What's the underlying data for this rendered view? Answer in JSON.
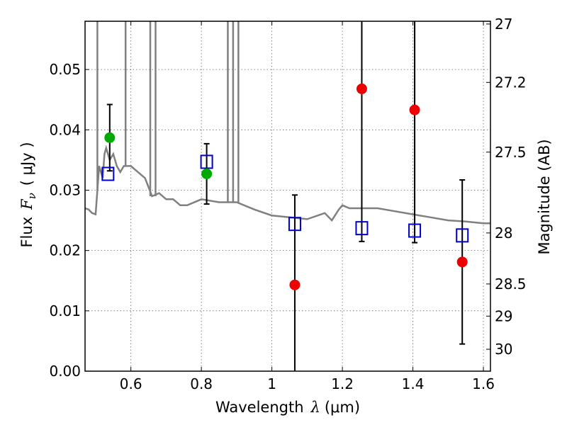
{
  "chart_data": {
    "type": "scatter",
    "xlabel_prefix": "Wavelength",
    "xlabel_symbol": "λ",
    "xlabel_unit": "(μm)",
    "ylabel_prefix": "Flux",
    "ylabel_symbol": "F",
    "ylabel_sub": "ν",
    "ylabel_unit": "( μJy )",
    "y2label": "Magnitude (AB)",
    "xlim": [
      0.47,
      1.62
    ],
    "ylim": [
      0.0,
      0.058
    ],
    "grid": true,
    "x_ticks": [
      0.6,
      0.8,
      1.0,
      1.2,
      1.4,
      1.6
    ],
    "x_tick_labels": [
      "0.6",
      "0.8",
      "1",
      "1.2",
      "1.4",
      "1.6"
    ],
    "y_ticks": [
      0.0,
      0.01,
      0.02,
      0.03,
      0.04,
      0.05
    ],
    "y_tick_labels": [
      "0.00",
      "0.01",
      "0.02",
      "0.03",
      "0.04",
      "0.05"
    ],
    "mag_ticks": [
      "27",
      "27.2",
      "27.5",
      "28",
      "28.5",
      "29",
      "30"
    ],
    "colors": {
      "model": "#808080",
      "model_fit": "#0000cc",
      "detection": "#00aa00",
      "measurement": "#ee0000",
      "errorbar": "#000000"
    },
    "model_spectrum": {
      "name": "SED model",
      "points": [
        [
          0.47,
          0.027
        ],
        [
          0.48,
          0.0268
        ],
        [
          0.49,
          0.0262
        ],
        [
          0.5,
          0.026
        ],
        [
          0.505,
          0.03
        ],
        [
          0.51,
          0.034
        ],
        [
          0.52,
          0.032
        ],
        [
          0.525,
          0.036
        ],
        [
          0.53,
          0.037
        ],
        [
          0.54,
          0.035
        ],
        [
          0.55,
          0.036
        ],
        [
          0.56,
          0.034
        ],
        [
          0.57,
          0.033
        ],
        [
          0.58,
          0.034
        ],
        [
          0.6,
          0.034
        ],
        [
          0.62,
          0.033
        ],
        [
          0.64,
          0.032
        ],
        [
          0.66,
          0.029
        ],
        [
          0.68,
          0.0295
        ],
        [
          0.7,
          0.0285
        ],
        [
          0.72,
          0.0285
        ],
        [
          0.74,
          0.0275
        ],
        [
          0.76,
          0.0275
        ],
        [
          0.8,
          0.0285
        ],
        [
          0.85,
          0.028
        ],
        [
          0.9,
          0.028
        ],
        [
          0.95,
          0.0268
        ],
        [
          1.0,
          0.0258
        ],
        [
          1.05,
          0.0255
        ],
        [
          1.1,
          0.0252
        ],
        [
          1.15,
          0.0262
        ],
        [
          1.17,
          0.025
        ],
        [
          1.19,
          0.0268
        ],
        [
          1.2,
          0.0275
        ],
        [
          1.22,
          0.027
        ],
        [
          1.3,
          0.027
        ],
        [
          1.35,
          0.0265
        ],
        [
          1.4,
          0.026
        ],
        [
          1.45,
          0.0255
        ],
        [
          1.5,
          0.025
        ],
        [
          1.55,
          0.0248
        ],
        [
          1.6,
          0.0245
        ],
        [
          1.62,
          0.0245
        ]
      ],
      "spike_x": [
        0.505,
        0.585,
        0.655,
        0.67,
        0.875,
        0.89,
        0.905
      ]
    },
    "series": [
      {
        "name": "model photometry",
        "marker": "open-square",
        "points": [
          {
            "x": 0.535,
            "y": 0.0327
          },
          {
            "x": 0.815,
            "y": 0.0347
          },
          {
            "x": 1.065,
            "y": 0.0244
          },
          {
            "x": 1.255,
            "y": 0.0237
          },
          {
            "x": 1.405,
            "y": 0.0233
          },
          {
            "x": 1.54,
            "y": 0.0225
          }
        ]
      },
      {
        "name": "detections",
        "marker": "filled-circle",
        "color_key": "detection",
        "points": [
          {
            "x": 0.54,
            "y": 0.0387,
            "err_low": 0.0332,
            "err_high": 0.0442
          },
          {
            "x": 0.815,
            "y": 0.0327,
            "err_low": 0.0277,
            "err_high": 0.0377
          }
        ]
      },
      {
        "name": "measurements",
        "marker": "filled-circle",
        "color_key": "measurement",
        "points": [
          {
            "x": 1.065,
            "y": 0.0143,
            "err_low": 0.0,
            "err_high": 0.0292
          },
          {
            "x": 1.255,
            "y": 0.0468,
            "err_low": 0.0215,
            "err_high": 0.058
          },
          {
            "x": 1.405,
            "y": 0.0433,
            "err_low": 0.0213,
            "err_high": 0.058
          },
          {
            "x": 1.54,
            "y": 0.0181,
            "err_low": 0.0045,
            "err_high": 0.0317
          }
        ]
      }
    ]
  }
}
